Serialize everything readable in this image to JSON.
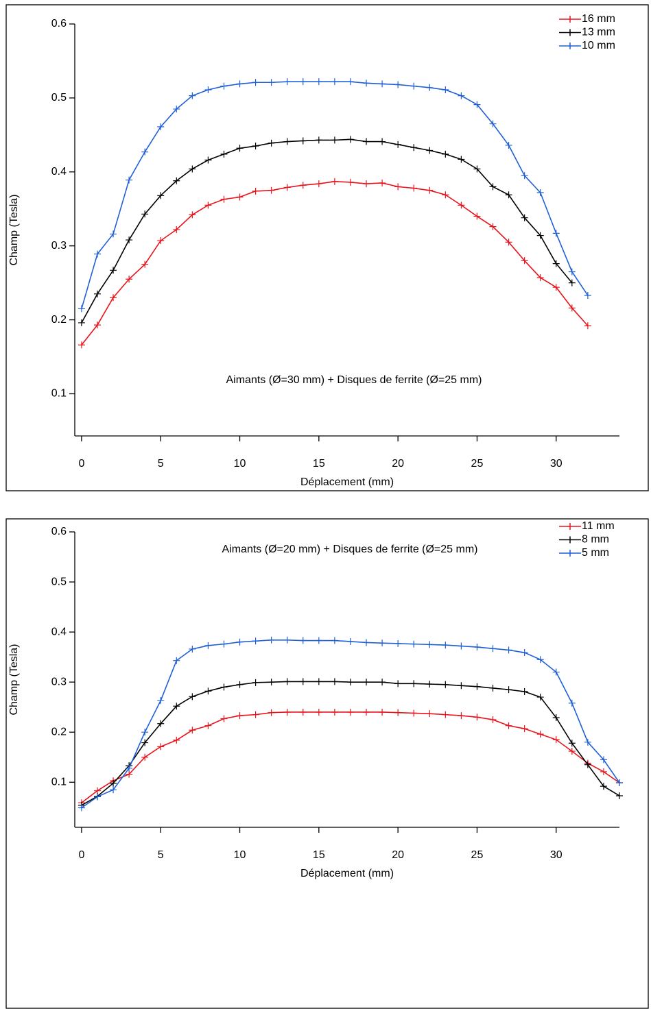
{
  "chart_data": [
    {
      "type": "line",
      "annotation": "Aimants (Ø=30 mm) + Disques de ferrite (Ø=25 mm)",
      "x_label": "Déplacement (mm)",
      "y_label": "Champ (Tesla)",
      "x": [
        0,
        1,
        2,
        3,
        4,
        5,
        6,
        7,
        8,
        9,
        10,
        11,
        12,
        13,
        14,
        15,
        16,
        17,
        18,
        19,
        20,
        21,
        22,
        23,
        24,
        25,
        26,
        27,
        28,
        29,
        30,
        31,
        32
      ],
      "series": [
        {
          "name": "16 mm",
          "color": "#e8131b",
          "values": [
            0.166,
            0.193,
            0.23,
            0.255,
            0.275,
            0.307,
            0.322,
            0.342,
            0.355,
            0.363,
            0.366,
            0.374,
            0.375,
            0.379,
            0.382,
            0.384,
            0.387,
            0.386,
            0.384,
            0.385,
            0.38,
            0.378,
            0.375,
            0.369,
            0.355,
            0.34,
            0.326,
            0.305,
            0.28,
            0.257,
            0.244,
            0.216,
            0.192
          ]
        },
        {
          "name": "13 mm",
          "color": "#000000",
          "values": [
            0.196,
            0.235,
            0.267,
            0.308,
            0.343,
            0.368,
            0.388,
            0.404,
            0.416,
            0.424,
            0.432,
            0.435,
            0.439,
            0.441,
            0.442,
            0.443,
            0.443,
            0.444,
            0.441,
            0.441,
            0.437,
            0.433,
            0.429,
            0.424,
            0.417,
            0.404,
            0.38,
            0.369,
            0.338,
            0.314,
            0.276,
            0.25,
            null
          ]
        },
        {
          "name": "10 mm",
          "color": "#1f5fd6",
          "values": [
            0.215,
            0.289,
            0.316,
            0.389,
            0.427,
            0.461,
            0.485,
            0.503,
            0.511,
            0.516,
            0.519,
            0.521,
            0.521,
            0.522,
            0.522,
            0.522,
            0.522,
            0.522,
            0.52,
            0.519,
            0.518,
            0.516,
            0.514,
            0.511,
            0.503,
            0.491,
            0.465,
            0.436,
            0.395,
            0.372,
            0.317,
            0.265,
            0.233
          ]
        }
      ],
      "xlim": [
        -0.43,
        34
      ],
      "xticks": [
        0,
        5,
        10,
        15,
        20,
        25,
        30
      ],
      "ylim": [
        0.043,
        0.6
      ],
      "yticks": [
        0.1,
        0.2,
        0.3,
        0.4,
        0.5,
        0.6
      ],
      "legend": "upper right"
    },
    {
      "type": "line",
      "annotation": "Aimants (Ø=20 mm) + Disques de ferrite (Ø=25 mm)",
      "x_label": "Déplacement (mm)",
      "y_label": "Champ (Tesla)",
      "x": [
        0,
        1,
        2,
        3,
        4,
        5,
        6,
        7,
        8,
        9,
        10,
        11,
        12,
        13,
        14,
        15,
        16,
        17,
        18,
        19,
        20,
        21,
        22,
        23,
        24,
        25,
        26,
        27,
        28,
        29,
        30,
        31,
        32,
        33,
        34
      ],
      "series": [
        {
          "name": "11 mm",
          "color": "#e8131b",
          "values": [
            0.059,
            0.083,
            0.103,
            0.116,
            0.15,
            0.171,
            0.184,
            0.204,
            0.213,
            0.227,
            0.233,
            0.235,
            0.239,
            0.24,
            0.24,
            0.24,
            0.24,
            0.24,
            0.24,
            0.24,
            0.239,
            0.238,
            0.237,
            0.235,
            0.233,
            0.23,
            0.225,
            0.213,
            0.207,
            0.196,
            0.185,
            0.162,
            0.138,
            0.121,
            0.099
          ]
        },
        {
          "name": "8 mm",
          "color": "#000000",
          "values": [
            0.054,
            0.072,
            0.098,
            0.133,
            0.179,
            0.217,
            0.252,
            0.271,
            0.282,
            0.29,
            0.295,
            0.299,
            0.3,
            0.301,
            0.301,
            0.301,
            0.301,
            0.3,
            0.3,
            0.3,
            0.297,
            0.297,
            0.296,
            0.295,
            0.293,
            0.291,
            0.288,
            0.285,
            0.281,
            0.27,
            0.229,
            0.178,
            0.135,
            0.092,
            0.073
          ]
        },
        {
          "name": "5 mm",
          "color": "#1f5fd6",
          "values": [
            0.049,
            0.071,
            0.085,
            0.128,
            0.2,
            0.263,
            0.343,
            0.366,
            0.373,
            0.376,
            0.38,
            0.382,
            0.384,
            0.384,
            0.383,
            0.383,
            0.383,
            0.381,
            0.379,
            0.378,
            0.377,
            0.376,
            0.375,
            0.374,
            0.372,
            0.37,
            0.367,
            0.364,
            0.359,
            0.345,
            0.32,
            0.258,
            0.18,
            0.145,
            0.099
          ]
        }
      ],
      "xlim": [
        -0.43,
        34
      ],
      "xticks": [
        0,
        5,
        10,
        15,
        20,
        25,
        30
      ],
      "ylim": [
        0.01,
        0.6
      ],
      "yticks": [
        0.1,
        0.2,
        0.3,
        0.4,
        0.5,
        0.6
      ],
      "legend": "upper right"
    }
  ]
}
